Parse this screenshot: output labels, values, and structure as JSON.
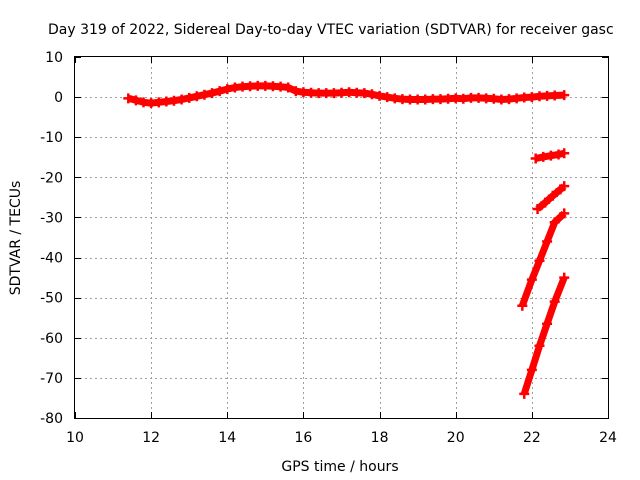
{
  "chart_data": {
    "type": "scatter",
    "title": "Day 319 of 2022, Sidereal Day-to-day VTEC variation (SDTVAR) for receiver gasc",
    "xlabel": "GPS time / hours",
    "ylabel": "SDTVAR / TECUs",
    "xlim": [
      10,
      24
    ],
    "ylim": [
      -80,
      10
    ],
    "xticks": [
      10,
      12,
      14,
      16,
      18,
      20,
      22,
      24
    ],
    "yticks": [
      10,
      0,
      -10,
      -20,
      -30,
      -40,
      -50,
      -60,
      -70,
      -80
    ],
    "grid": true,
    "legend": "none",
    "series_color": "#ff0000",
    "series": [
      {
        "x": [
          11.4,
          11.6,
          11.8,
          12.0,
          12.2,
          12.4,
          12.6,
          12.8,
          13.0,
          13.2,
          13.4,
          13.6,
          13.8,
          14.0,
          14.2,
          14.4,
          14.6,
          14.8,
          15.0,
          15.2,
          15.4,
          15.6,
          15.8,
          16.0,
          16.2,
          16.4,
          16.6,
          16.8,
          17.0,
          17.2,
          17.4,
          17.6,
          17.8,
          18.0,
          18.2,
          18.4,
          18.6,
          18.8,
          19.0,
          19.2,
          19.4,
          19.6,
          19.8,
          20.0,
          20.2,
          20.4,
          20.6,
          20.8,
          21.0,
          21.2,
          21.4,
          21.6,
          21.8,
          22.0,
          22.2,
          22.4,
          22.6,
          22.85
        ],
        "y": [
          -0.3,
          -0.8,
          -1.3,
          -1.5,
          -1.3,
          -1.1,
          -0.9,
          -0.6,
          -0.2,
          0.2,
          0.6,
          1.0,
          1.5,
          2.0,
          2.4,
          2.6,
          2.7,
          2.8,
          2.8,
          2.7,
          2.6,
          2.4,
          1.5,
          1.2,
          1.1,
          1.0,
          1.0,
          1.0,
          1.1,
          1.2,
          1.1,
          1.0,
          0.7,
          0.3,
          0.0,
          -0.3,
          -0.5,
          -0.6,
          -0.6,
          -0.6,
          -0.5,
          -0.5,
          -0.4,
          -0.3,
          -0.4,
          -0.2,
          -0.2,
          -0.3,
          -0.4,
          -0.6,
          -0.5,
          -0.3,
          -0.1,
          0.0,
          0.2,
          0.3,
          0.4,
          0.5
        ]
      },
      {
        "x": [
          22.1,
          22.3,
          22.5,
          22.7,
          22.85
        ],
        "y": [
          -15.3,
          -14.9,
          -14.6,
          -14.3,
          -14.0
        ]
      },
      {
        "x": [
          22.15,
          22.35,
          22.55,
          22.75,
          22.85
        ],
        "y": [
          -27.9,
          -26.3,
          -24.6,
          -23.0,
          -22.2
        ]
      },
      {
        "x": [
          21.75,
          22.0,
          22.2,
          22.4,
          22.6,
          22.85
        ],
        "y": [
          -52.0,
          -45.5,
          -40.8,
          -36.0,
          -31.2,
          -29.0
        ]
      },
      {
        "x": [
          21.8,
          22.0,
          22.2,
          22.4,
          22.6,
          22.85
        ],
        "y": [
          -74.0,
          -68.0,
          -62.0,
          -56.5,
          -51.0,
          -45.0
        ]
      }
    ]
  }
}
